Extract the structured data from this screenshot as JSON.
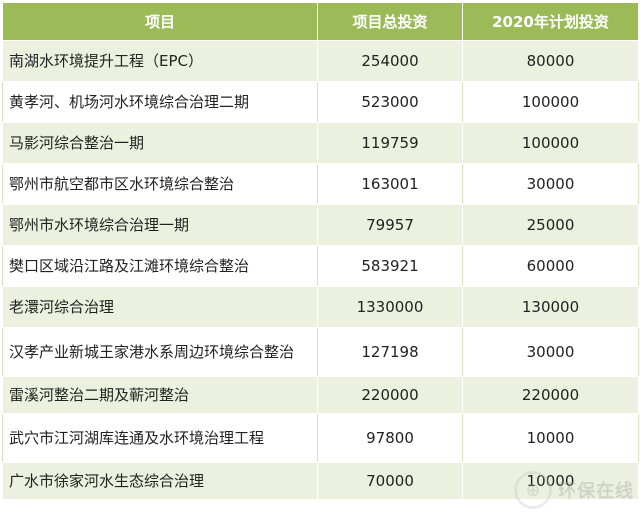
{
  "headers": [
    "项目",
    "项目总投资",
    "2020年计划投资"
  ],
  "rows": [
    {
      "name": "南湖水环境提升工程（EPC）",
      "total": "254000",
      "plan": "80000"
    },
    {
      "name": "黄孝河、机场河水环境综合治理二期",
      "total": "523000",
      "plan": "100000"
    },
    {
      "name": "马影河综合整治一期",
      "total": "119759",
      "plan": "100000"
    },
    {
      "name": "鄂州市航空都市区水环境综合整治",
      "total": "163001",
      "plan": "30000"
    },
    {
      "name": "鄂州市水环境综合治理一期",
      "total": "79957",
      "plan": "25000"
    },
    {
      "name": "樊口区域沿江路及江滩环境综合整治",
      "total": "583921",
      "plan": "60000"
    },
    {
      "name": "老澴河综合治理",
      "total": "1330000",
      "plan": "130000"
    },
    {
      "name": "汉孝产业新城王家港水系周边环境综合整治",
      "total": "127198",
      "plan": "30000"
    },
    {
      "name": "雷溪河整治二期及蕲河整治",
      "total": "220000",
      "plan": "220000"
    },
    {
      "name": "武穴市江河湖库连通及水环境治理工程",
      "total": "97800",
      "plan": "10000"
    },
    {
      "name": "广水市徐家河水生态综合治理",
      "total": "70000",
      "plan": "10000"
    }
  ],
  "watermark": {
    "text": "环保在线",
    "logo": "logo-icon"
  },
  "colors": {
    "header_bg": "#9bbb59",
    "row_odd": "#ebf1de",
    "row_even": "#ffffff"
  }
}
